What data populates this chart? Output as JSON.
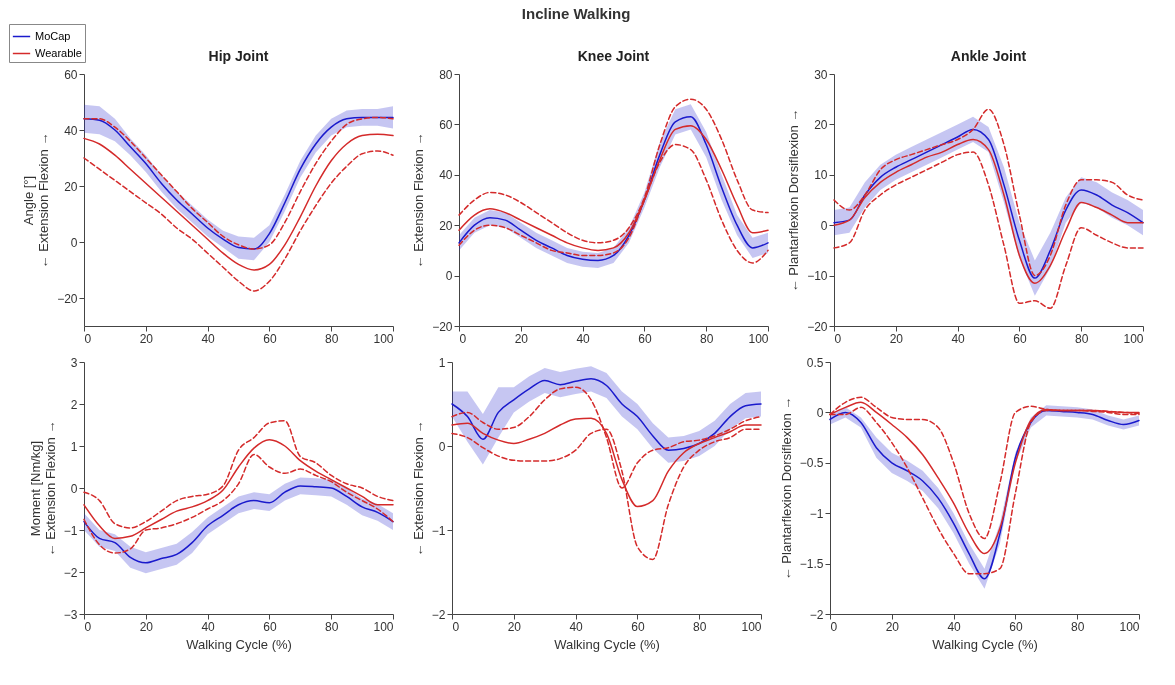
{
  "chart_data": [
    {
      "type": "line",
      "title": "Hip Joint",
      "annotations": [
        "Incline Walking"
      ],
      "ylabel": "Angle [°]\n←  Extension      Flexion  →",
      "legend": "top left",
      "x": [
        0,
        5,
        10,
        15,
        20,
        25,
        30,
        35,
        40,
        45,
        50,
        55,
        60,
        65,
        70,
        75,
        80,
        85,
        90,
        95,
        100
      ],
      "xlim": [
        0,
        100
      ],
      "xticks": [
        0,
        20,
        40,
        60,
        80,
        100
      ],
      "ylim": [
        -30,
        60
      ],
      "yticks": [
        -20,
        0,
        20,
        40,
        60
      ],
      "series": [
        {
          "name": "MoCap",
          "color": "#1a1acc",
          "values": [
            44,
            43.5,
            40,
            34,
            28,
            21,
            15,
            10,
            5,
            1,
            -2,
            -2.5,
            3,
            14,
            26,
            35,
            41,
            44,
            44.5,
            44.5,
            44.5
          ],
          "lower": [
            39,
            38.5,
            36,
            31,
            25,
            18,
            12,
            7,
            2,
            -2,
            -6,
            -6.5,
            0,
            11,
            23,
            32,
            38,
            41,
            41.5,
            41.5,
            40.5
          ],
          "upper": [
            49,
            48.5,
            44,
            37,
            31,
            24,
            18,
            13,
            8,
            4,
            2,
            1.5,
            6,
            17,
            29,
            38,
            44,
            47,
            47.5,
            47.5,
            48.5
          ]
        },
        {
          "name": "Wearable",
          "color": "#d42a2a",
          "values": [
            37,
            35,
            31,
            26,
            21,
            16,
            11,
            6,
            1,
            -4,
            -8,
            -10,
            -8,
            -1,
            9,
            20,
            29,
            35,
            38,
            38.5,
            38
          ]
        },
        {
          "color": "#d42a2a",
          "line_style": "dashed",
          "values": [
            44,
            44,
            41,
            36,
            30,
            24,
            18,
            12,
            7,
            2,
            -1,
            -2.5,
            -1,
            7,
            18,
            28,
            36,
            42,
            44,
            44.5,
            44
          ]
        },
        {
          "color": "#d42a2a",
          "line_style": "dashed",
          "values": [
            30,
            26,
            22,
            18,
            14,
            10,
            5,
            1,
            -4,
            -9,
            -14,
            -17.5,
            -14,
            -6,
            4,
            13,
            21,
            27,
            31.5,
            32.5,
            31
          ]
        }
      ]
    },
    {
      "type": "line",
      "title": "Knee Joint",
      "ylabel": "←  Extension      Flexion  →",
      "x": [
        0,
        5,
        10,
        15,
        20,
        25,
        30,
        35,
        40,
        45,
        50,
        55,
        60,
        65,
        70,
        75,
        80,
        85,
        90,
        95,
        100
      ],
      "xlim": [
        0,
        100
      ],
      "xticks": [
        0,
        20,
        40,
        60,
        80,
        100
      ],
      "ylim": [
        -20,
        80
      ],
      "yticks": [
        -20,
        0,
        20,
        40,
        60,
        80
      ],
      "series": [
        {
          "name": "MoCap",
          "color": "#1a1acc",
          "values": [
            13,
            20,
            23,
            22,
            18,
            14,
            11,
            8,
            6.5,
            6,
            8,
            16,
            30,
            48,
            61,
            63,
            52,
            35,
            20,
            11,
            13
          ],
          "lower": [
            10,
            17,
            20,
            19,
            15,
            11,
            8,
            5,
            3.5,
            3,
            5,
            13,
            27,
            43,
            56,
            58,
            47,
            30,
            16,
            7,
            9
          ],
          "upper": [
            16,
            23,
            26,
            25,
            21,
            17,
            14,
            11,
            9.5,
            9,
            11,
            19,
            33,
            53,
            66,
            68,
            57,
            40,
            24,
            15,
            17
          ]
        },
        {
          "name": "Wearable",
          "color": "#d42a2a",
          "values": [
            18,
            24,
            26.5,
            25,
            22,
            19,
            16,
            13,
            11,
            10,
            11,
            17,
            30,
            46,
            58,
            59.5,
            54,
            42,
            28,
            17,
            18
          ]
        },
        {
          "color": "#d42a2a",
          "line_style": "dashed",
          "values": [
            24,
            30,
            33,
            32,
            29,
            25,
            21,
            17,
            14,
            13,
            14,
            19,
            31,
            52,
            67,
            70,
            66,
            54,
            38,
            26,
            25
          ]
        },
        {
          "color": "#d42a2a",
          "line_style": "dashed",
          "values": [
            12,
            18,
            20,
            19,
            16,
            13,
            10,
            9,
            8,
            8,
            9,
            15,
            30,
            45,
            52,
            50,
            38,
            22,
            10,
            5,
            10
          ]
        }
      ]
    },
    {
      "type": "line",
      "title": "Ankle Joint",
      "ylabel": "←  Plantarflexion      Dorsiflexion  →",
      "x": [
        0,
        5,
        10,
        15,
        20,
        25,
        30,
        35,
        40,
        45,
        50,
        55,
        60,
        65,
        70,
        75,
        80,
        85,
        90,
        95,
        100
      ],
      "xlim": [
        0,
        100
      ],
      "xticks": [
        0,
        20,
        40,
        60,
        80,
        100
      ],
      "ylim": [
        -20,
        30
      ],
      "yticks": [
        -20,
        -10,
        0,
        10,
        20,
        30
      ],
      "series": [
        {
          "name": "MoCap",
          "color": "#1a1acc",
          "values": [
            0.5,
            1,
            6,
            9.5,
            11.5,
            13,
            14.5,
            16,
            17.5,
            19,
            17,
            8,
            -3,
            -10.5,
            -5,
            3,
            7,
            6,
            4,
            2.5,
            0.5
          ],
          "lower": [
            -2,
            -1.5,
            3.5,
            7,
            9,
            10.5,
            12,
            13.5,
            15,
            16.5,
            14.5,
            4.5,
            -6.5,
            -14,
            -8.5,
            0.5,
            4.5,
            3.5,
            1.5,
            0,
            -2
          ],
          "upper": [
            3,
            3.5,
            8.5,
            12,
            14,
            15.5,
            17,
            18.5,
            20,
            21.5,
            19.5,
            11.5,
            0.5,
            -7,
            -1.5,
            5.5,
            9.5,
            8.5,
            6.5,
            5,
            3
          ]
        },
        {
          "name": "Wearable",
          "color": "#d42a2a",
          "values": [
            0,
            1,
            5.5,
            8.5,
            10.5,
            12,
            13.5,
            14.5,
            16,
            17,
            15,
            6,
            -6,
            -11.5,
            -8,
            -1,
            4.5,
            3.5,
            2,
            0.5,
            0.5
          ]
        },
        {
          "color": "#d42a2a",
          "line_style": "dashed",
          "values": [
            5,
            3,
            6,
            11,
            13,
            14,
            15,
            16,
            17,
            19,
            23,
            16,
            2,
            -10,
            -6,
            4,
            9,
            9,
            8.5,
            6,
            5
          ]
        },
        {
          "color": "#d42a2a",
          "line_style": "dashed",
          "values": [
            -4.5,
            -3.5,
            3,
            6,
            8,
            9.5,
            11,
            12.5,
            14,
            14.5,
            8,
            -4,
            -15.5,
            -15,
            -16.5,
            -8,
            -0.5,
            -2,
            -3.5,
            -4.5,
            -4.5
          ]
        }
      ]
    },
    {
      "type": "line",
      "xlabel": "Walking Cycle (%)",
      "ylabel": "Moment [Nm/kg]\n←  Extension      Flexion  →",
      "x": [
        0,
        5,
        10,
        15,
        20,
        25,
        30,
        35,
        40,
        45,
        50,
        55,
        60,
        65,
        70,
        75,
        80,
        85,
        90,
        95,
        100
      ],
      "xlim": [
        0,
        100
      ],
      "xticks": [
        0,
        20,
        40,
        60,
        80,
        100
      ],
      "ylim": [
        -3,
        3
      ],
      "yticks": [
        -3,
        -2,
        -1,
        0,
        1,
        2,
        3
      ],
      "series": [
        {
          "name": "MoCap",
          "color": "#1a1acc",
          "values": [
            -0.8,
            -1.2,
            -1.3,
            -1.65,
            -1.78,
            -1.68,
            -1.58,
            -1.3,
            -0.9,
            -0.65,
            -0.4,
            -0.3,
            -0.35,
            -0.1,
            0.05,
            0.03,
            0,
            -0.2,
            -0.45,
            -0.58,
            -0.8
          ],
          "lower": [
            -1,
            -1.4,
            -1.5,
            -1.9,
            -2.03,
            -1.93,
            -1.83,
            -1.55,
            -1.1,
            -0.85,
            -0.6,
            -0.5,
            -0.55,
            -0.3,
            -0.15,
            -0.17,
            -0.2,
            -0.4,
            -0.65,
            -0.78,
            -1
          ],
          "upper": [
            -0.6,
            -1,
            -1.1,
            -1.4,
            -1.53,
            -1.43,
            -1.33,
            -1.05,
            -0.7,
            -0.45,
            -0.2,
            -0.1,
            -0.15,
            0.1,
            0.25,
            0.23,
            0.2,
            0,
            -0.25,
            -0.38,
            -0.6
          ]
        },
        {
          "name": "Wearable",
          "color": "#d42a2a",
          "values": [
            -0.4,
            -0.9,
            -1.2,
            -1.15,
            -0.95,
            -0.75,
            -0.55,
            -0.45,
            -0.3,
            -0.05,
            0.5,
            0.95,
            1.15,
            1,
            0.65,
            0.4,
            0.2,
            0,
            -0.2,
            -0.4,
            -0.4
          ]
        },
        {
          "color": "#d42a2a",
          "line_style": "dashed",
          "values": [
            -0.1,
            -0.3,
            -0.85,
            -0.95,
            -0.8,
            -0.55,
            -0.3,
            -0.2,
            -0.15,
            0.05,
            0.9,
            1.2,
            1.55,
            1.6,
            0.75,
            0.6,
            0.3,
            0.1,
            0,
            -0.2,
            -0.3
          ]
        },
        {
          "color": "#d42a2a",
          "line_style": "dashed",
          "values": [
            -0.75,
            -1.35,
            -1.55,
            -1.45,
            -1,
            -0.95,
            -0.85,
            -0.7,
            -0.5,
            -0.3,
            0.1,
            0.8,
            0.5,
            0.35,
            0.45,
            0.3,
            0.15,
            -0.1,
            -0.3,
            -0.5,
            -0.8
          ]
        }
      ]
    },
    {
      "type": "line",
      "xlabel": "Walking Cycle (%)",
      "ylabel": "←  Extension      Flexion  →",
      "x": [
        0,
        5,
        10,
        15,
        20,
        25,
        30,
        35,
        40,
        45,
        50,
        55,
        60,
        65,
        70,
        75,
        80,
        85,
        90,
        95,
        100
      ],
      "xlim": [
        0,
        100
      ],
      "xticks": [
        0,
        20,
        40,
        60,
        80,
        100
      ],
      "ylim": [
        -2,
        1
      ],
      "yticks": [
        -2,
        -1,
        0,
        1
      ],
      "series": [
        {
          "name": "MoCap",
          "color": "#1a1acc",
          "values": [
            0.5,
            0.35,
            0.08,
            0.4,
            0.55,
            0.68,
            0.78,
            0.73,
            0.77,
            0.8,
            0.72,
            0.5,
            0.35,
            0.12,
            -0.05,
            -0.03,
            0.03,
            0.15,
            0.35,
            0.48,
            0.5
          ],
          "lower": [
            0.35,
            0.05,
            -0.22,
            0.1,
            0.4,
            0.53,
            0.63,
            0.58,
            0.62,
            0.65,
            0.57,
            0.35,
            0.2,
            -0.03,
            -0.2,
            -0.18,
            -0.12,
            0,
            0.2,
            0.33,
            0.35
          ],
          "upper": [
            0.65,
            0.65,
            0.38,
            0.7,
            0.7,
            0.83,
            0.93,
            0.88,
            0.92,
            0.95,
            0.87,
            0.65,
            0.5,
            0.27,
            0.1,
            0.12,
            0.18,
            0.3,
            0.5,
            0.63,
            0.65
          ]
        },
        {
          "name": "Wearable",
          "color": "#d42a2a",
          "values": [
            0.25,
            0.27,
            0.15,
            0.07,
            0.03,
            0.08,
            0.15,
            0.25,
            0.32,
            0.33,
            0.15,
            -0.4,
            -0.72,
            -0.65,
            -0.3,
            -0.08,
            0.03,
            0.1,
            0.17,
            0.25,
            0.25
          ]
        },
        {
          "color": "#d42a2a",
          "line_style": "dashed",
          "values": [
            0.35,
            0.4,
            0.28,
            0.2,
            0.22,
            0.35,
            0.55,
            0.68,
            0.7,
            0.55,
            0.1,
            -0.5,
            -0.2,
            -0.05,
            -0.02,
            0.05,
            0.07,
            0.12,
            0.2,
            0.3,
            0.35
          ]
        },
        {
          "color": "#d42a2a",
          "line_style": "dashed",
          "values": [
            0.15,
            0.1,
            -0.02,
            -0.12,
            -0.17,
            -0.18,
            -0.18,
            -0.15,
            -0.05,
            0.15,
            0.2,
            -0.3,
            -1.2,
            -1.35,
            -0.7,
            -0.25,
            -0.05,
            0.05,
            0.1,
            0.2,
            0.2
          ]
        }
      ]
    },
    {
      "type": "line",
      "xlabel": "Walking Cycle (%)",
      "ylabel": "←  Plantarflexion      Dorsiflexion  →",
      "x": [
        0,
        5,
        10,
        15,
        20,
        25,
        30,
        35,
        40,
        45,
        50,
        55,
        60,
        65,
        70,
        75,
        80,
        85,
        90,
        95,
        100
      ],
      "xlim": [
        0,
        100
      ],
      "xticks": [
        0,
        20,
        40,
        60,
        80,
        100
      ],
      "ylim": [
        -2,
        0.5
      ],
      "yticks": [
        -2,
        -1.5,
        -1,
        -0.5,
        0,
        0.5
      ],
      "series": [
        {
          "name": "MoCap",
          "color": "#1a1acc",
          "values": [
            -0.07,
            0,
            -0.1,
            -0.35,
            -0.5,
            -0.58,
            -0.68,
            -0.85,
            -1.1,
            -1.4,
            -1.65,
            -1.2,
            -0.45,
            -0.1,
            0.02,
            0.01,
            0,
            -0.02,
            -0.08,
            -0.12,
            -0.08
          ],
          "lower": [
            -0.12,
            -0.05,
            -0.15,
            -0.45,
            -0.6,
            -0.68,
            -0.78,
            -0.95,
            -1.2,
            -1.5,
            -1.75,
            -1.3,
            -0.5,
            -0.15,
            -0.03,
            -0.04,
            -0.05,
            -0.07,
            -0.13,
            -0.17,
            -0.13
          ],
          "upper": [
            -0.02,
            0.05,
            -0.05,
            -0.25,
            -0.4,
            -0.48,
            -0.58,
            -0.75,
            -1,
            -1.3,
            -1.55,
            -1.1,
            -0.4,
            -0.05,
            0.07,
            0.06,
            0.05,
            0.03,
            -0.03,
            -0.07,
            -0.03
          ]
        },
        {
          "name": "Wearable",
          "color": "#d42a2a",
          "values": [
            -0.02,
            0.05,
            0.1,
            0,
            -0.12,
            -0.25,
            -0.42,
            -0.65,
            -0.9,
            -1.2,
            -1.4,
            -1.15,
            -0.5,
            -0.08,
            0.03,
            0.02,
            0.02,
            0.02,
            0.01,
            0,
            0
          ]
        },
        {
          "color": "#d42a2a",
          "line_style": "dashed",
          "values": [
            -0.02,
            0.1,
            0.15,
            0.05,
            -0.05,
            -0.07,
            -0.07,
            -0.15,
            -0.5,
            -1,
            -1.25,
            -0.7,
            0,
            0.06,
            0.03,
            0.02,
            0.02,
            0.02,
            0.01,
            0,
            -0.01
          ]
        },
        {
          "color": "#d42a2a",
          "line_style": "dashed",
          "values": [
            -0.02,
            -0.02,
            0.05,
            -0.1,
            -0.3,
            -0.55,
            -0.85,
            -1.15,
            -1.4,
            -1.6,
            -1.6,
            -1.55,
            -0.8,
            -0.1,
            0.02,
            0.02,
            0.02,
            0.01,
            0,
            -0.02,
            -0.02
          ]
        }
      ]
    }
  ]
}
